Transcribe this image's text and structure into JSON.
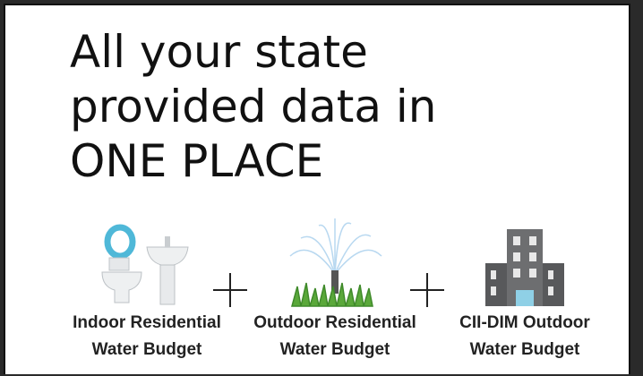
{
  "title": {
    "lines": [
      "All your state",
      "provided data in",
      "ONE PLACE"
    ]
  },
  "items": [
    {
      "label": [
        "Indoor Residential",
        "Water Budget"
      ]
    },
    {
      "label": [
        "Outdoor Residential",
        "Water Budget"
      ]
    },
    {
      "label": [
        "CII-DIM Outdoor",
        "Water Budget"
      ]
    }
  ]
}
